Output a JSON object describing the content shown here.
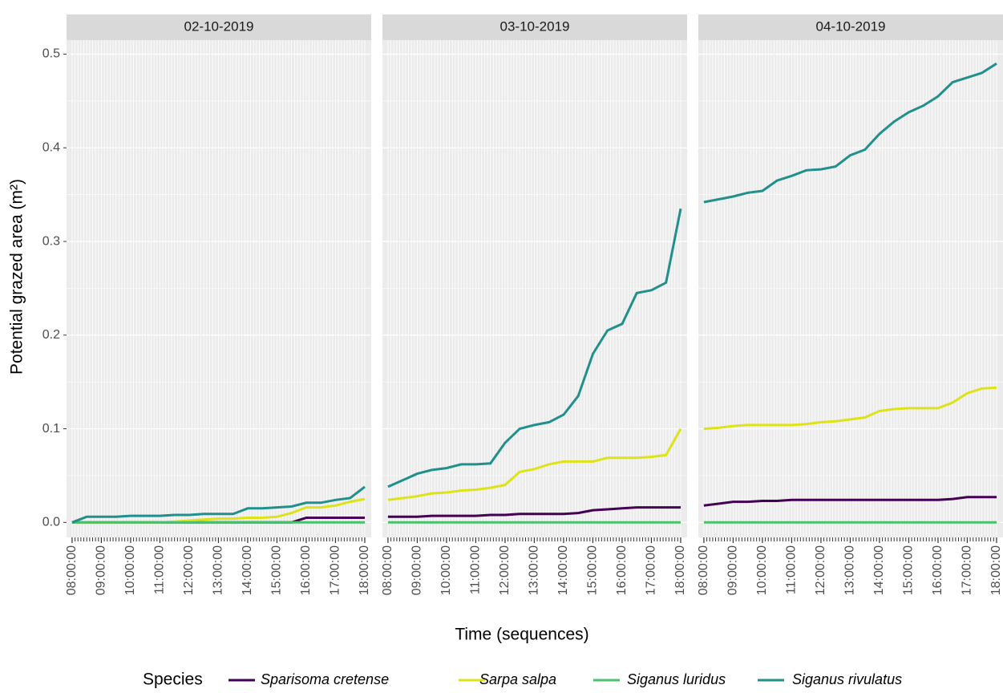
{
  "ylabel": "Potential grazed area (m²)",
  "xlabel": "Time (sequences)",
  "legend_title": "Species",
  "chart_data": [
    {
      "type": "line",
      "title": "02-10-2019",
      "x": [
        8,
        8.5,
        9,
        9.5,
        10,
        10.5,
        11,
        11.5,
        12,
        12.5,
        13,
        13.5,
        14,
        14.5,
        15,
        15.5,
        16,
        16.5,
        17,
        17.5,
        18
      ],
      "xlim": [
        7.81,
        18.22
      ],
      "ylim": [
        -0.016,
        0.515
      ],
      "xticks": [
        {
          "value": 8,
          "label": "08:00:00"
        },
        {
          "value": 9,
          "label": "09:00:00"
        },
        {
          "value": 10,
          "label": "10:00:00"
        },
        {
          "value": 11,
          "label": "11:00:00"
        },
        {
          "value": 12,
          "label": "12:00:00"
        },
        {
          "value": 13,
          "label": "13:00:00"
        },
        {
          "value": 14,
          "label": "14:00:00"
        },
        {
          "value": 15,
          "label": "15:00:00"
        },
        {
          "value": 16,
          "label": "16:00:00"
        },
        {
          "value": 17,
          "label": "17:00:00"
        },
        {
          "value": 18,
          "label": "18:00:00"
        }
      ],
      "yticks": [
        {
          "value": 0,
          "label": "0.0"
        },
        0.1,
        0.2,
        0.3,
        0.4,
        0.5
      ],
      "grid": true,
      "series": [
        {
          "name": "Sparisoma cretense",
          "color": "#440154",
          "values": [
            0,
            0,
            0,
            0,
            0,
            0,
            0,
            0,
            0,
            0,
            0,
            0,
            0,
            0,
            0,
            0,
            0.005,
            0.005,
            0.005,
            0.005,
            0.005
          ]
        },
        {
          "name": "Sarpa salpa",
          "color": "#dde318",
          "values": [
            0,
            0,
            0,
            0,
            0,
            0,
            0,
            0.001,
            0.002,
            0.003,
            0.004,
            0.004,
            0.005,
            0.005,
            0.006,
            0.01,
            0.016,
            0.016,
            0.018,
            0.022,
            0.025
          ]
        },
        {
          "name": "Siganus luridus",
          "color": "#4ac16d",
          "values": [
            0,
            0,
            0,
            0,
            0,
            0,
            0,
            0,
            0,
            0,
            0,
            0,
            0,
            0,
            0,
            0,
            0,
            0,
            0,
            0,
            0
          ]
        },
        {
          "name": "Siganus rivulatus",
          "color": "#21908c",
          "values": [
            0,
            0.006,
            0.006,
            0.006,
            0.007,
            0.007,
            0.007,
            0.008,
            0.008,
            0.009,
            0.009,
            0.009,
            0.015,
            0.015,
            0.016,
            0.017,
            0.021,
            0.021,
            0.024,
            0.026,
            0.038
          ]
        }
      ]
    },
    {
      "type": "line",
      "title": "03-10-2019",
      "x": [
        8,
        8.5,
        9,
        9.5,
        10,
        10.5,
        11,
        11.5,
        12,
        12.5,
        13,
        13.5,
        14,
        14.5,
        15,
        15.5,
        16,
        16.5,
        17,
        17.5,
        18
      ],
      "xlim": [
        7.81,
        18.22
      ],
      "ylim": [
        -0.016,
        0.515
      ],
      "xticks": [
        {
          "value": 8,
          "label": "08:00:00"
        },
        {
          "value": 9,
          "label": "09:00:00"
        },
        {
          "value": 10,
          "label": "10:00:00"
        },
        {
          "value": 11,
          "label": "11:00:00"
        },
        {
          "value": 12,
          "label": "12:00:00"
        },
        {
          "value": 13,
          "label": "13:00:00"
        },
        {
          "value": 14,
          "label": "14:00:00"
        },
        {
          "value": 15,
          "label": "15:00:00"
        },
        {
          "value": 16,
          "label": "16:00:00"
        },
        {
          "value": 17,
          "label": "17:00:00"
        },
        {
          "value": 18,
          "label": "18:00:00"
        }
      ],
      "yticks": [
        {
          "value": 0,
          "label": "0.0"
        },
        0.1,
        0.2,
        0.3,
        0.4,
        0.5
      ],
      "grid": true,
      "series": [
        {
          "name": "Sparisoma cretense",
          "color": "#440154",
          "values": [
            0.006,
            0.006,
            0.006,
            0.007,
            0.007,
            0.007,
            0.007,
            0.008,
            0.008,
            0.009,
            0.009,
            0.009,
            0.009,
            0.01,
            0.013,
            0.014,
            0.015,
            0.016,
            0.016,
            0.016,
            0.016
          ]
        },
        {
          "name": "Sarpa salpa",
          "color": "#dde318",
          "values": [
            0.024,
            0.026,
            0.028,
            0.031,
            0.032,
            0.034,
            0.035,
            0.037,
            0.04,
            0.054,
            0.057,
            0.062,
            0.065,
            0.065,
            0.065,
            0.069,
            0.069,
            0.069,
            0.07,
            0.072,
            0.1
          ]
        },
        {
          "name": "Siganus luridus",
          "color": "#4ac16d",
          "values": [
            0,
            0,
            0,
            0,
            0,
            0,
            0,
            0,
            0,
            0,
            0,
            0,
            0,
            0,
            0,
            0,
            0,
            0,
            0,
            0,
            0
          ]
        },
        {
          "name": "Siganus rivulatus",
          "color": "#21908c",
          "values": [
            0.038,
            0.045,
            0.052,
            0.056,
            0.058,
            0.062,
            0.062,
            0.063,
            0.085,
            0.1,
            0.104,
            0.107,
            0.115,
            0.135,
            0.18,
            0.205,
            0.212,
            0.245,
            0.248,
            0.256,
            0.335
          ]
        }
      ]
    },
    {
      "type": "line",
      "title": "04-10-2019",
      "x": [
        8,
        8.5,
        9,
        9.5,
        10,
        10.5,
        11,
        11.5,
        12,
        12.5,
        13,
        13.5,
        14,
        14.5,
        15,
        15.5,
        16,
        16.5,
        17,
        17.5,
        18
      ],
      "xlim": [
        7.81,
        18.22
      ],
      "ylim": [
        -0.016,
        0.515
      ],
      "xticks": [
        {
          "value": 8,
          "label": "08:00:00"
        },
        {
          "value": 9,
          "label": "09:00:00"
        },
        {
          "value": 10,
          "label": "10:00:00"
        },
        {
          "value": 11,
          "label": "11:00:00"
        },
        {
          "value": 12,
          "label": "12:00:00"
        },
        {
          "value": 13,
          "label": "13:00:00"
        },
        {
          "value": 14,
          "label": "14:00:00"
        },
        {
          "value": 15,
          "label": "15:00:00"
        },
        {
          "value": 16,
          "label": "16:00:00"
        },
        {
          "value": 17,
          "label": "17:00:00"
        },
        {
          "value": 18,
          "label": "18:00:00"
        }
      ],
      "yticks": [
        {
          "value": 0,
          "label": "0.0"
        },
        0.1,
        0.2,
        0.3,
        0.4,
        0.5
      ],
      "grid": true,
      "series": [
        {
          "name": "Sparisoma cretense",
          "color": "#440154",
          "values": [
            0.018,
            0.02,
            0.022,
            0.022,
            0.023,
            0.023,
            0.024,
            0.024,
            0.024,
            0.024,
            0.024,
            0.024,
            0.024,
            0.024,
            0.024,
            0.024,
            0.024,
            0.025,
            0.027,
            0.027,
            0.027
          ]
        },
        {
          "name": "Sarpa salpa",
          "color": "#dde318",
          "values": [
            0.1,
            0.101,
            0.103,
            0.104,
            0.104,
            0.104,
            0.104,
            0.105,
            0.107,
            0.108,
            0.11,
            0.112,
            0.119,
            0.121,
            0.122,
            0.122,
            0.122,
            0.128,
            0.138,
            0.143,
            0.144
          ]
        },
        {
          "name": "Siganus luridus",
          "color": "#4ac16d",
          "values": [
            0,
            0,
            0,
            0,
            0,
            0,
            0,
            0,
            0,
            0,
            0,
            0,
            0,
            0,
            0,
            0,
            0,
            0,
            0,
            0,
            0
          ]
        },
        {
          "name": "Siganus rivulatus",
          "color": "#21908c",
          "values": [
            0.342,
            0.345,
            0.348,
            0.352,
            0.354,
            0.365,
            0.37,
            0.376,
            0.377,
            0.38,
            0.392,
            0.398,
            0.415,
            0.428,
            0.438,
            0.445,
            0.455,
            0.47,
            0.475,
            0.48,
            0.49
          ]
        }
      ]
    }
  ]
}
